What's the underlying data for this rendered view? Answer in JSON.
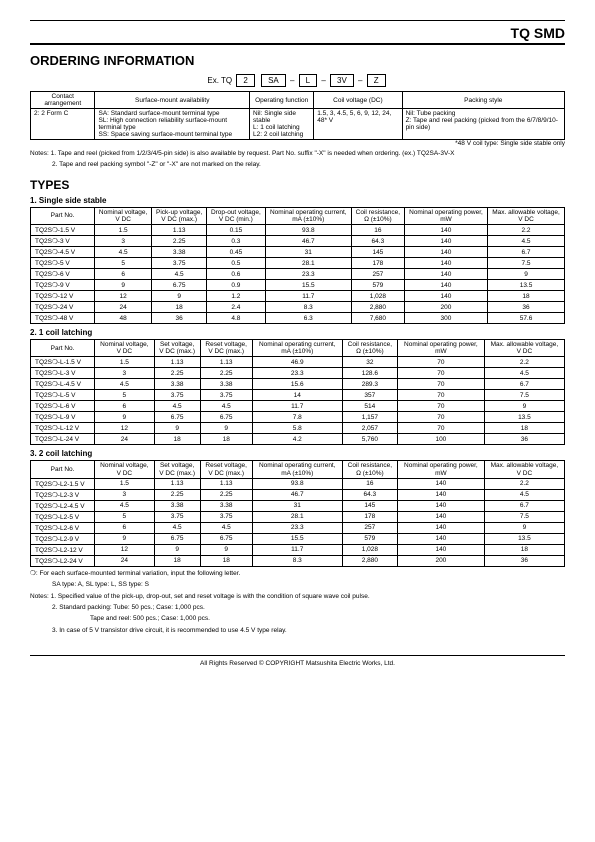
{
  "brand": "TQ SMD",
  "h_order": "ORDERING INFORMATION",
  "ex_label": "Ex. TQ",
  "ex_boxes": [
    "2",
    "SA",
    "L",
    "3V",
    "Z"
  ],
  "order_headers": [
    "Contact arrangement",
    "Surface-mount availability",
    "Operating function",
    "Coil voltage (DC)",
    "Packing style"
  ],
  "order_row": [
    "2: 2 Form C",
    "SA: Standard surface-mount terminal type\nSL: High connection reliability surface-mount terminal type\nSS: Space saving surface-mount terminal type",
    "Nil: Single side stable\nL: 1 coil latching\nL2: 2 coil latching",
    "1.5, 3, 4.5, 5, 6, 9, 12, 24, 48* V",
    "Nil: Tube packing\nZ: Tape and reel packing (picked from the 6/7/8/9/10-pin side)"
  ],
  "note_48v": "*48 V coil type: Single side stable only",
  "note_order1": "Notes:  1. Tape and reel (picked from 1/2/3/4/5-pin side) is also available by request. Part No. suffix \"-X\" is needed when ordering. (ex.) TQ2SA-3V-X",
  "note_order2": "2. Tape and reel packing symbol \"-Z\" or \"-X\" are not marked on the relay.",
  "h_types": "TYPES",
  "sub1": "1. Single side stable",
  "sub2": "2. 1 coil latching",
  "sub3": "3. 2 coil latching",
  "types_headers_a": [
    "Part No.",
    "Nominal voltage, V DC",
    "Pick-up voltage, V DC (max.)",
    "Drop-out voltage, V DC (min.)",
    "Nominal operating current, mA (±10%)",
    "Coil resistance, Ω (±10%)",
    "Nominal operating power, mW",
    "Max. allowable voltage, V DC"
  ],
  "types_headers_b": [
    "Part No.",
    "Nominal voltage, V DC",
    "Set voltage, V DC (max.)",
    "Reset voltage, V DC (max.)",
    "Nominal operating current, mA (±10%)",
    "Coil resistance, Ω (±10%)",
    "Nominal operating power, mW",
    "Max. allowable voltage, V DC"
  ],
  "t1": [
    [
      "TQ2S❍-1.5 V",
      "1.5",
      "1.13",
      "0.15",
      "93.8",
      "16",
      "140",
      "2.2"
    ],
    [
      "TQ2S❍-3 V",
      "3",
      "2.25",
      "0.3",
      "46.7",
      "64.3",
      "140",
      "4.5"
    ],
    [
      "TQ2S❍-4.5 V",
      "4.5",
      "3.38",
      "0.45",
      "31",
      "145",
      "140",
      "6.7"
    ],
    [
      "TQ2S❍-5 V",
      "5",
      "3.75",
      "0.5",
      "28.1",
      "178",
      "140",
      "7.5"
    ],
    [
      "TQ2S❍-6 V",
      "6",
      "4.5",
      "0.6",
      "23.3",
      "257",
      "140",
      "9"
    ],
    [
      "TQ2S❍-9 V",
      "9",
      "6.75",
      "0.9",
      "15.5",
      "579",
      "140",
      "13.5"
    ],
    [
      "TQ2S❍-12 V",
      "12",
      "9",
      "1.2",
      "11.7",
      "1,028",
      "140",
      "18"
    ],
    [
      "TQ2S❍-24 V",
      "24",
      "18",
      "2.4",
      "8.3",
      "2,880",
      "200",
      "36"
    ],
    [
      "TQ2S❍-48 V",
      "48",
      "36",
      "4.8",
      "6.3",
      "7,680",
      "300",
      "57.6"
    ]
  ],
  "t2": [
    [
      "TQ2S❍-L-1.5 V",
      "1.5",
      "1.13",
      "1.13",
      "46.9",
      "32",
      "70",
      "2.2"
    ],
    [
      "TQ2S❍-L-3 V",
      "3",
      "2.25",
      "2.25",
      "23.3",
      "128.6",
      "70",
      "4.5"
    ],
    [
      "TQ2S❍-L-4.5 V",
      "4.5",
      "3.38",
      "3.38",
      "15.6",
      "289.3",
      "70",
      "6.7"
    ],
    [
      "TQ2S❍-L-5 V",
      "5",
      "3.75",
      "3.75",
      "14",
      "357",
      "70",
      "7.5"
    ],
    [
      "TQ2S❍-L-6 V",
      "6",
      "4.5",
      "4.5",
      "11.7",
      "514",
      "70",
      "9"
    ],
    [
      "TQ2S❍-L-9 V",
      "9",
      "6.75",
      "6.75",
      "7.8",
      "1,157",
      "70",
      "13.5"
    ],
    [
      "TQ2S❍-L-12 V",
      "12",
      "9",
      "9",
      "5.8",
      "2,057",
      "70",
      "18"
    ],
    [
      "TQ2S❍-L-24 V",
      "24",
      "18",
      "18",
      "4.2",
      "5,760",
      "100",
      "36"
    ]
  ],
  "t3": [
    [
      "TQ2S❍-L2-1.5 V",
      "1.5",
      "1.13",
      "1.13",
      "93.8",
      "16",
      "140",
      "2.2"
    ],
    [
      "TQ2S❍-L2-3 V",
      "3",
      "2.25",
      "2.25",
      "46.7",
      "64.3",
      "140",
      "4.5"
    ],
    [
      "TQ2S❍-L2-4.5 V",
      "4.5",
      "3.38",
      "3.38",
      "31",
      "145",
      "140",
      "6.7"
    ],
    [
      "TQ2S❍-L2-5 V",
      "5",
      "3.75",
      "3.75",
      "28.1",
      "178",
      "140",
      "7.5"
    ],
    [
      "TQ2S❍-L2-6 V",
      "6",
      "4.5",
      "4.5",
      "23.3",
      "257",
      "140",
      "9"
    ],
    [
      "TQ2S❍-L2-9 V",
      "9",
      "6.75",
      "6.75",
      "15.5",
      "579",
      "140",
      "13.5"
    ],
    [
      "TQ2S❍-L2-12 V",
      "12",
      "9",
      "9",
      "11.7",
      "1,028",
      "140",
      "18"
    ],
    [
      "TQ2S❍-L2-24 V",
      "24",
      "18",
      "18",
      "8.3",
      "2,880",
      "200",
      "36"
    ]
  ],
  "foot_note1": "❍: For each surface-mounted terminal variation, input the following letter.",
  "foot_note2": "SA type: A, SL type: L, SS type: S",
  "foot_notes": "Notes: 1. Specified value of the pick-up, drop-out, set and reset voltage is with the condition of square wave coil pulse.",
  "foot_notes2": "2. Standard packing: Tube: 50 pcs.; Case: 1,000 pcs.",
  "foot_notes2b": "Tape and reel: 500 pcs.; Case: 1,000 pcs.",
  "foot_notes3": "3. In case of 5 V transistor drive circuit, it is recommended to use 4.5 V type relay.",
  "copyright": "All Rights Reserved © COPYRIGHT Matsushita Electric Works, Ltd."
}
